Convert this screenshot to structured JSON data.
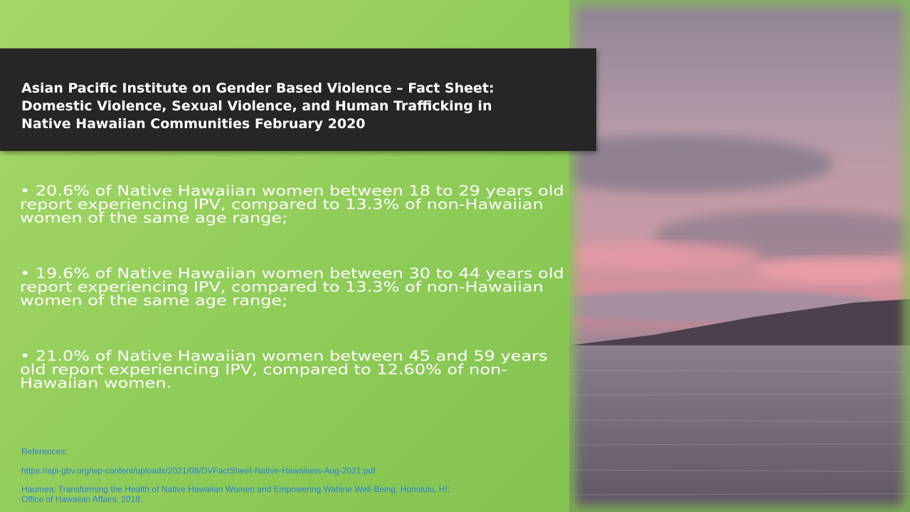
{
  "header": {
    "title_lines": [
      "Asian Pacific Institute on Gender Based Violence – Fact Sheet:",
      "Domestic Violence, Sexual Violence, and Human Trafficking in",
      "Native Hawaiian Communities  February 2020"
    ]
  },
  "bullets": [
    [
      "• 20.6% of Native Hawaiian women between 18 to 29 years old",
      "report experiencing IPV, compared to 13.3% of non-Hawaiian",
      "women of the same age range;"
    ],
    [
      "• 19.6% of Native Hawaiian women between 30 to 44 years old",
      "report experiencing IPV, compared to 13.3% of non-Hawaiian",
      "women of the same age range;"
    ],
    [
      "• 21.0% of Native Hawaiian women between 45 and 59 years",
      "old report experiencing IPV, compared to 12.60% of non-",
      "Hawaiian women."
    ]
  ],
  "references": {
    "heading": "References:",
    "lines": [
      "https://api-gbv.org/wp-content/uploads/2021/08/DVFactSheet-Native-Hawaiians-Aug-2021.pdf",
      "Haumea:  Transforming the Health of Native Hawaiian Women and Empowering Wahine Well-Being.  Honolulu, HI:",
      "Office of Hawaiian Affairs, 2018."
    ]
  }
}
